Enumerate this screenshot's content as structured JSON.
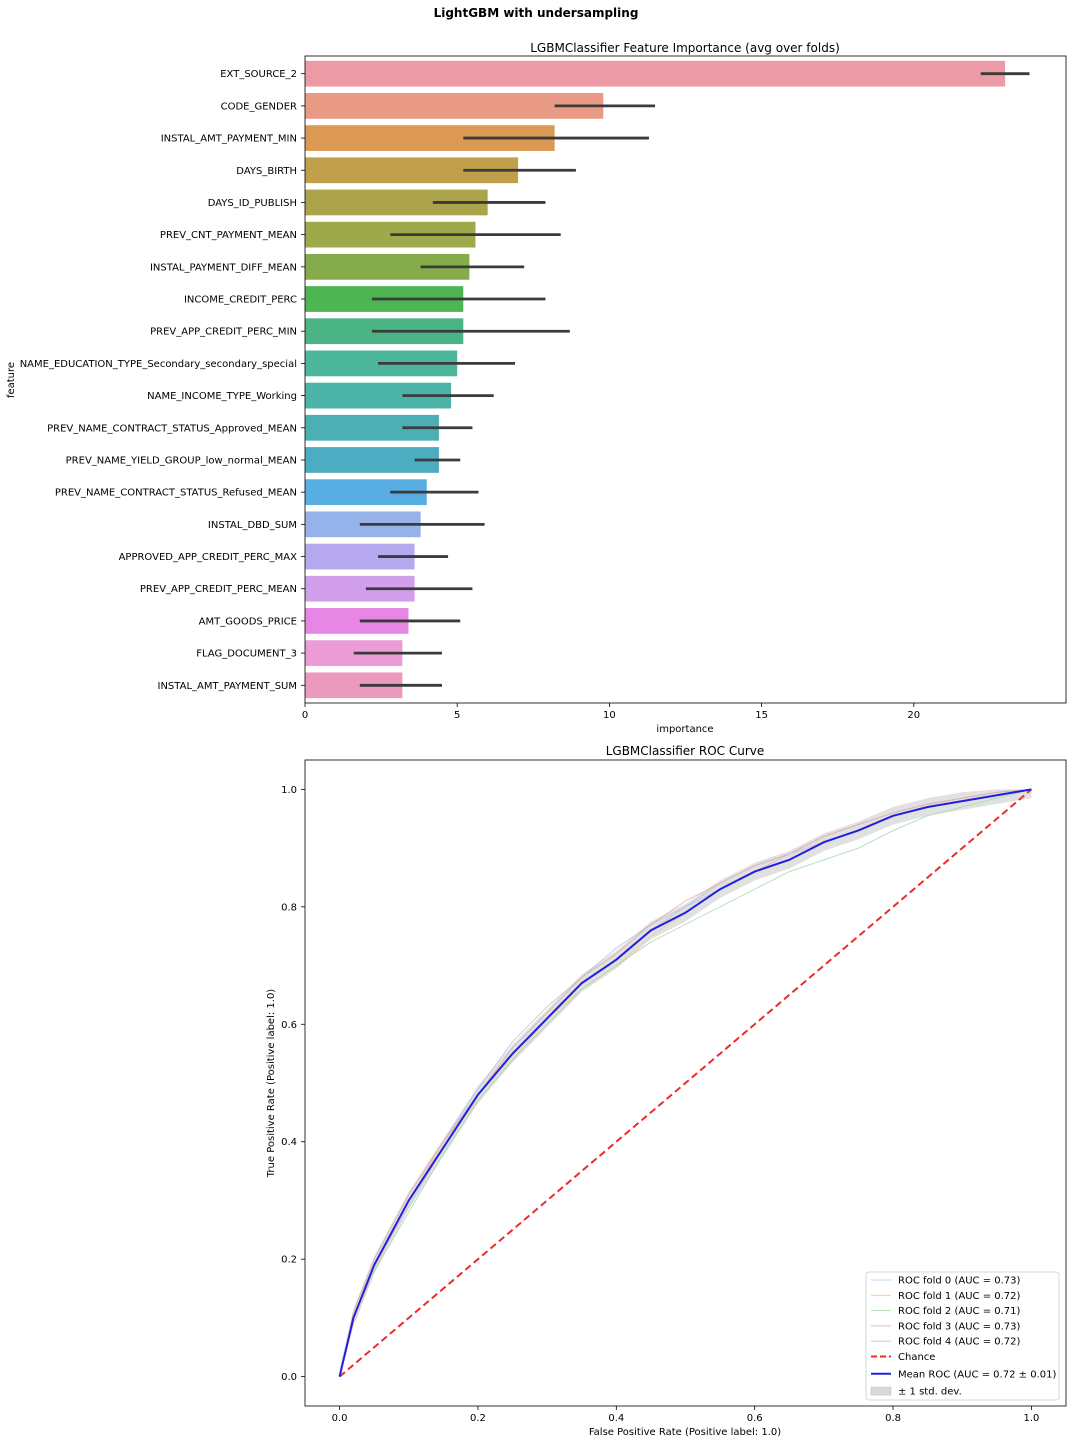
{
  "figure": {
    "suptitle": "LightGBM with undersampling"
  },
  "chart_data": [
    {
      "type": "bar",
      "orientation": "horizontal",
      "title": "LGBMClassifier Feature Importance (avg over folds)",
      "xlabel": "importance",
      "ylabel": "feature",
      "xlim": [
        0,
        25
      ],
      "xticks": [
        "0",
        "5",
        "10",
        "15",
        "20"
      ],
      "xtick_values": [
        0,
        5,
        10,
        15,
        20
      ],
      "grid": false,
      "categories": [
        "EXT_SOURCE_2",
        "CODE_GENDER",
        "INSTAL_AMT_PAYMENT_MIN",
        "DAYS_BIRTH",
        "DAYS_ID_PUBLISH",
        "PREV_CNT_PAYMENT_MEAN",
        "INSTAL_PAYMENT_DIFF_MEAN",
        "INCOME_CREDIT_PERC",
        "PREV_APP_CREDIT_PERC_MIN",
        "NAME_EDUCATION_TYPE_Secondary_secondary_special",
        "NAME_INCOME_TYPE_Working",
        "PREV_NAME_CONTRACT_STATUS_Approved_MEAN",
        "PREV_NAME_YIELD_GROUP_low_normal_MEAN",
        "PREV_NAME_CONTRACT_STATUS_Refused_MEAN",
        "INSTAL_DBD_SUM",
        "APPROVED_APP_CREDIT_PERC_MAX",
        "PREV_APP_CREDIT_PERC_MEAN",
        "AMT_GOODS_PRICE",
        "FLAG_DOCUMENT_3",
        "INSTAL_AMT_PAYMENT_SUM"
      ],
      "values": [
        23.0,
        9.8,
        8.2,
        7.0,
        6.0,
        5.6,
        5.4,
        5.2,
        5.2,
        5.0,
        4.8,
        4.4,
        4.4,
        4.0,
        3.8,
        3.6,
        3.6,
        3.4,
        3.2,
        3.2
      ],
      "error_low": [
        22.2,
        8.2,
        5.2,
        5.2,
        4.2,
        2.8,
        3.8,
        2.2,
        2.2,
        2.4,
        3.2,
        3.2,
        3.6,
        2.8,
        1.8,
        2.4,
        2.0,
        1.8,
        1.6,
        1.8
      ],
      "error_high": [
        23.8,
        11.5,
        11.3,
        8.9,
        7.9,
        8.4,
        7.2,
        7.9,
        8.7,
        6.9,
        6.2,
        5.5,
        5.1,
        5.7,
        5.9,
        4.7,
        5.5,
        5.1,
        4.5,
        4.5
      ],
      "colors": [
        "#ec9aa6",
        "#e89a85",
        "#db9954",
        "#c1a04b",
        "#aca44a",
        "#9eaa4a",
        "#86ab4a",
        "#4db552",
        "#4ab485",
        "#4cb69b",
        "#4cb3a8",
        "#4cafb4",
        "#4cadc2",
        "#58aee3",
        "#95b3ea",
        "#b6a8ef",
        "#d19feb",
        "#e786e5",
        "#ec9bd6",
        "#ec99be"
      ]
    },
    {
      "type": "line",
      "title": "LGBMClassifier ROC Curve",
      "xlabel": "False Positive Rate (Positive label: 1.0)",
      "ylabel": "True Positive Rate (Positive label: 1.0)",
      "xlim": [
        -0.05,
        1.05
      ],
      "ylim": [
        -0.05,
        1.05
      ],
      "xticks": [
        "0.0",
        "0.2",
        "0.4",
        "0.6",
        "0.8",
        "1.0"
      ],
      "xtick_values": [
        0.0,
        0.2,
        0.4,
        0.6,
        0.8,
        1.0
      ],
      "yticks": [
        "0.0",
        "0.2",
        "0.4",
        "0.6",
        "0.8",
        "1.0"
      ],
      "ytick_values": [
        0.0,
        0.2,
        0.4,
        0.6,
        0.8,
        1.0
      ],
      "grid": false,
      "legend_position": "lower-right",
      "x": [
        0.0,
        0.02,
        0.05,
        0.1,
        0.15,
        0.2,
        0.25,
        0.3,
        0.35,
        0.4,
        0.45,
        0.5,
        0.55,
        0.6,
        0.65,
        0.7,
        0.75,
        0.8,
        0.85,
        0.9,
        0.95,
        1.0
      ],
      "series": [
        {
          "name": "ROC fold 0 (AUC = 0.73)",
          "color": "#a9c8ea",
          "width": 0.8,
          "values": [
            0.0,
            0.1,
            0.19,
            0.3,
            0.4,
            0.49,
            0.57,
            0.63,
            0.68,
            0.73,
            0.77,
            0.8,
            0.84,
            0.87,
            0.89,
            0.92,
            0.94,
            0.96,
            0.975,
            0.985,
            0.995,
            1.0
          ]
        },
        {
          "name": "ROC fold 1 (AUC = 0.72)",
          "color": "#f6c7a1",
          "width": 0.8,
          "values": [
            0.0,
            0.09,
            0.18,
            0.3,
            0.4,
            0.47,
            0.54,
            0.61,
            0.66,
            0.7,
            0.75,
            0.79,
            0.83,
            0.86,
            0.88,
            0.91,
            0.93,
            0.955,
            0.97,
            0.98,
            0.99,
            1.0
          ]
        },
        {
          "name": "ROC fold 2 (AUC = 0.71)",
          "color": "#a6d9a6",
          "width": 0.8,
          "values": [
            0.0,
            0.1,
            0.18,
            0.28,
            0.38,
            0.47,
            0.54,
            0.6,
            0.66,
            0.7,
            0.74,
            0.77,
            0.8,
            0.83,
            0.86,
            0.88,
            0.9,
            0.93,
            0.955,
            0.97,
            0.985,
            1.0
          ]
        },
        {
          "name": "ROC fold 3 (AUC = 0.73)",
          "color": "#eaa6a6",
          "width": 0.8,
          "values": [
            0.0,
            0.11,
            0.2,
            0.31,
            0.4,
            0.48,
            0.56,
            0.62,
            0.68,
            0.72,
            0.77,
            0.81,
            0.84,
            0.87,
            0.89,
            0.92,
            0.94,
            0.96,
            0.975,
            0.985,
            0.995,
            1.0
          ]
        },
        {
          "name": "ROC fold 4 (AUC = 0.72)",
          "color": "#cdbbe0",
          "width": 0.8,
          "values": [
            0.0,
            0.1,
            0.19,
            0.29,
            0.39,
            0.48,
            0.55,
            0.61,
            0.67,
            0.71,
            0.76,
            0.8,
            0.83,
            0.86,
            0.89,
            0.91,
            0.93,
            0.955,
            0.97,
            0.98,
            0.99,
            1.0
          ]
        },
        {
          "name": "Chance",
          "color": "#ee2a2a",
          "width": 2,
          "dash": true,
          "values": [
            0.0,
            0.02,
            0.05,
            0.1,
            0.15,
            0.2,
            0.25,
            0.3,
            0.35,
            0.4,
            0.45,
            0.5,
            0.55,
            0.6,
            0.65,
            0.7,
            0.75,
            0.8,
            0.85,
            0.9,
            0.95,
            1.0
          ]
        },
        {
          "name": "Mean ROC (AUC = 0.72 ± 0.01)",
          "color": "#2020dd",
          "width": 2,
          "values": [
            0.0,
            0.1,
            0.19,
            0.3,
            0.39,
            0.48,
            0.55,
            0.61,
            0.67,
            0.71,
            0.76,
            0.79,
            0.83,
            0.86,
            0.88,
            0.91,
            0.93,
            0.955,
            0.97,
            0.98,
            0.99,
            1.0
          ]
        }
      ],
      "band": {
        "name": "± 1 std. dev.",
        "color": "#d9d9d9",
        "std": 0.015
      }
    }
  ]
}
